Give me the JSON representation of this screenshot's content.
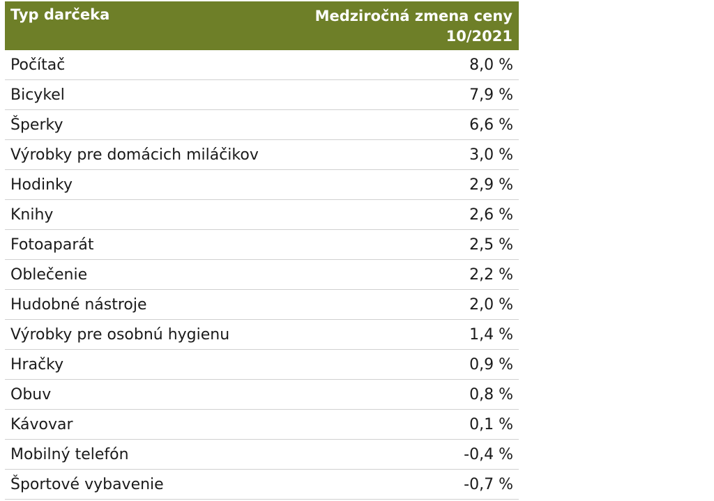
{
  "header": {
    "col1": "Typ darčeka",
    "col2_line1": "Medziročná zmena ceny",
    "col2_line2": "10/2021"
  },
  "rows": [
    {
      "name": "Počítač",
      "value": "8,0 %"
    },
    {
      "name": "Bicykel",
      "value": "7,9 %"
    },
    {
      "name": "Šperky",
      "value": "6,6 %"
    },
    {
      "name": "Výrobky pre domácich miláčikov",
      "value": "3,0 %"
    },
    {
      "name": "Hodinky",
      "value": "2,9 %"
    },
    {
      "name": "Knihy",
      "value": "2,6 %"
    },
    {
      "name": "Fotoaparát",
      "value": "2,5 %"
    },
    {
      "name": "Oblečenie",
      "value": "2,2 %"
    },
    {
      "name": "Hudobné nástroje",
      "value": "2,0 %"
    },
    {
      "name": "Výrobky pre osobnú hygienu",
      "value": "1,4 %"
    },
    {
      "name": "Hračky",
      "value": "0,9 %"
    },
    {
      "name": "Obuv",
      "value": "0,8 %"
    },
    {
      "name": "Kávovar",
      "value": "0,1 %"
    },
    {
      "name": "Mobilný telefón",
      "value": "-0,4 %"
    },
    {
      "name": "Športové vybavenie",
      "value": "-0,7 %"
    }
  ],
  "colors": {
    "header_bg": "#6e7f28",
    "header_text": "#ffffff",
    "row_border": "#d0d0d0"
  }
}
